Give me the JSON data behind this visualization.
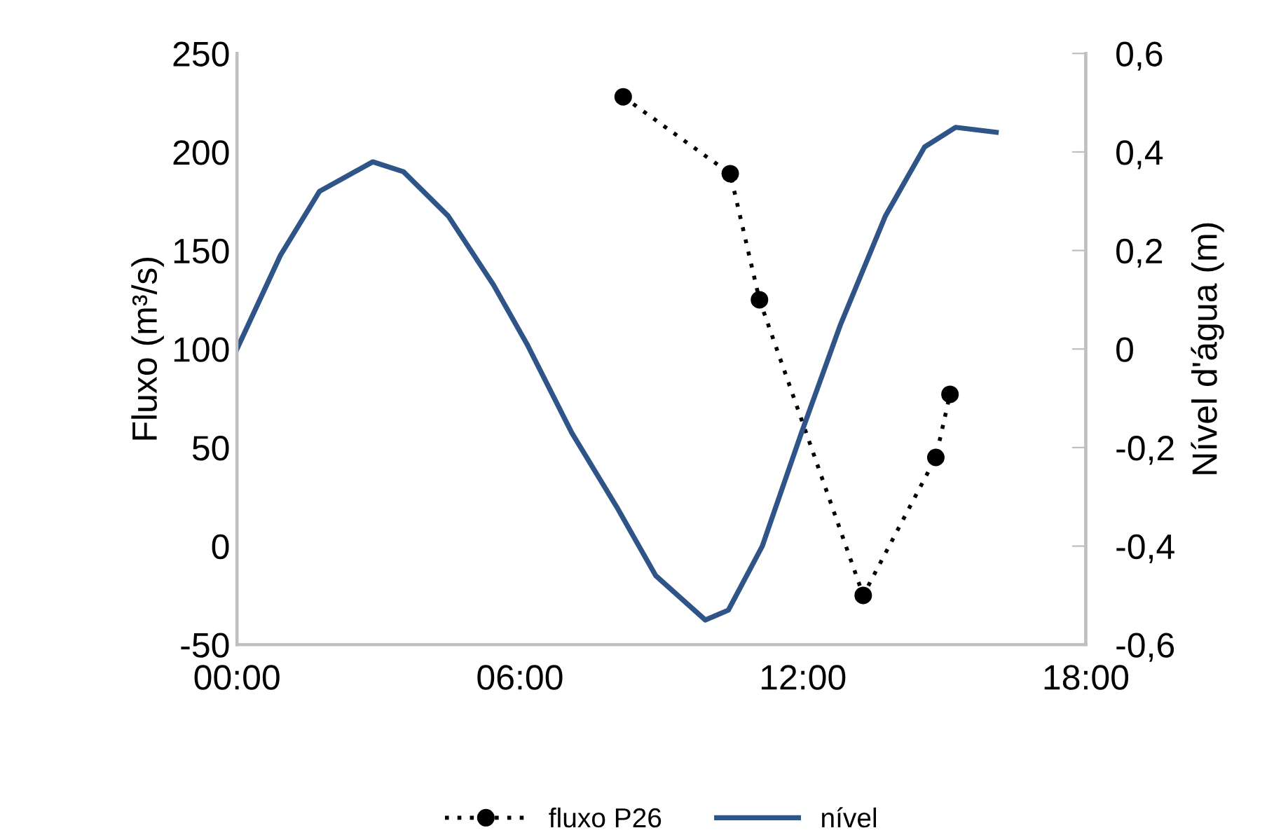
{
  "chart_data": {
    "type": "line",
    "ylabel": "Fluxo (m³/s)",
    "y2label": "Nível d'água (m)",
    "xlim": [
      0,
      18
    ],
    "xticks": [
      {
        "value": 0,
        "label": "00:00"
      },
      {
        "value": 6,
        "label": "06:00"
      },
      {
        "value": 12,
        "label": "12:00"
      },
      {
        "value": 18,
        "label": "18:00"
      }
    ],
    "ylim": [
      -50,
      250
    ],
    "yticks": [
      -50,
      0,
      50,
      100,
      150,
      200,
      250
    ],
    "y2lim": [
      -0.6,
      0.6
    ],
    "y2ticks": [
      {
        "value": -0.6,
        "label": "-0,6"
      },
      {
        "value": -0.4,
        "label": "-0,4"
      },
      {
        "value": -0.2,
        "label": "-0,2"
      },
      {
        "value": 0,
        "label": "0"
      },
      {
        "value": 0.2,
        "label": "0,2"
      },
      {
        "value": 0.4,
        "label": "0,4"
      },
      {
        "value": 0.6,
        "label": "0,6"
      }
    ],
    "grid": false,
    "legend": "bottom",
    "series": [
      {
        "name": "fluxo P26",
        "color": "#000000",
        "marker": "circle",
        "line_style": "dotted",
        "x": [
          8.19,
          10.46,
          11.08,
          13.28,
          14.82,
          15.12
        ],
        "values": [
          228,
          189,
          125,
          -25,
          45,
          77
        ]
      },
      {
        "name": "nível",
        "color": "#2f5488",
        "marker": "none",
        "line_style": "solid",
        "axis": "y2",
        "x": [
          0,
          0.92,
          1.75,
          2.88,
          3.53,
          4.48,
          5.44,
          6.15,
          7.1,
          8.05,
          8.88,
          9.93,
          10.42,
          11.14,
          11.97,
          12.8,
          13.75,
          14.58,
          15.24,
          16.1
        ],
        "values": [
          0.0,
          0.19,
          0.32,
          0.38,
          0.36,
          0.27,
          0.13,
          0.01,
          -0.17,
          -0.32,
          -0.46,
          -0.55,
          -0.53,
          -0.4,
          -0.17,
          0.05,
          0.27,
          0.41,
          0.45,
          0.44
        ]
      }
    ]
  }
}
